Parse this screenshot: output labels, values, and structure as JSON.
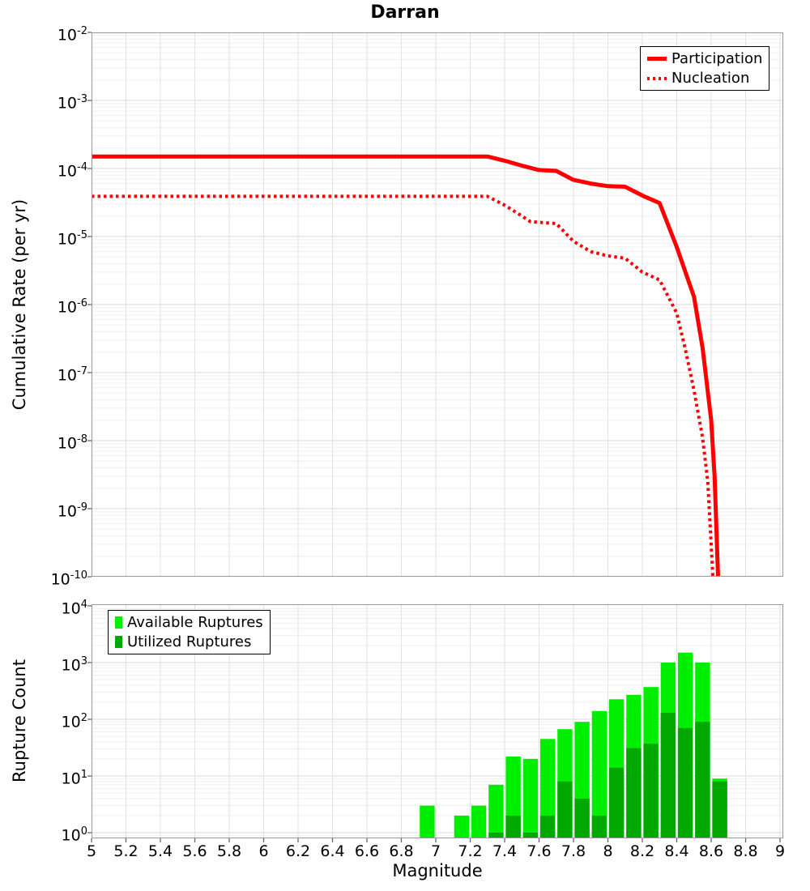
{
  "title": "Darran",
  "colors": {
    "rate_line": "#ff0000",
    "available_green": "#00ef00",
    "utilized_green": "#00a800",
    "grid_major": "#d8d8d8",
    "grid_minor": "#efefef",
    "grid_vertical": "#e2e2e2",
    "frame": "#999999",
    "tick": "#666666"
  },
  "chart_data": [
    {
      "type": "line",
      "title": "Darran",
      "ylabel": "Cumulative Rate (per yr)",
      "y_scale": "log",
      "y_range": [
        1e-10,
        0.01
      ],
      "x_range": [
        5,
        9
      ],
      "grid": true,
      "y_tick_exponents": [
        -2,
        -3,
        -4,
        -5,
        -6,
        -7,
        -8,
        -9,
        -10
      ],
      "legend": {
        "position": "top-right",
        "entries": [
          "Participation",
          "Nucleation"
        ]
      },
      "series": [
        {
          "name": "Participation",
          "line_style": "solid",
          "color": "#ff0000",
          "points": [
            [
              5.0,
              0.00015
            ],
            [
              7.3,
              0.00015
            ],
            [
              7.4,
              0.00013
            ],
            [
              7.5,
              0.00011
            ],
            [
              7.6,
              9.5e-05
            ],
            [
              7.7,
              9.2e-05
            ],
            [
              7.8,
              6.8e-05
            ],
            [
              7.9,
              6e-05
            ],
            [
              8.0,
              5.5e-05
            ],
            [
              8.1,
              5.4e-05
            ],
            [
              8.2,
              4e-05
            ],
            [
              8.3,
              3.1e-05
            ],
            [
              8.4,
              7e-06
            ],
            [
              8.5,
              1.3e-06
            ],
            [
              8.55,
              2.3e-07
            ],
            [
              8.6,
              2e-08
            ],
            [
              8.62,
              3e-09
            ],
            [
              8.64,
              1e-10
            ]
          ]
        },
        {
          "name": "Nucleation",
          "line_style": "dotted",
          "color": "#ff0000",
          "points": [
            [
              5.0,
              3.9e-05
            ],
            [
              7.3,
              3.9e-05
            ],
            [
              7.4,
              2.9e-05
            ],
            [
              7.5,
              2e-05
            ],
            [
              7.55,
              1.65e-05
            ],
            [
              7.7,
              1.55e-05
            ],
            [
              7.8,
              8.5e-06
            ],
            [
              7.9,
              6e-06
            ],
            [
              8.0,
              5.2e-06
            ],
            [
              8.1,
              4.8e-06
            ],
            [
              8.2,
              3e-06
            ],
            [
              8.3,
              2.3e-06
            ],
            [
              8.4,
              7.5e-07
            ],
            [
              8.45,
              2.2e-07
            ],
            [
              8.5,
              5.5e-08
            ],
            [
              8.55,
              1.1e-08
            ],
            [
              8.58,
              2.5e-09
            ],
            [
              8.61,
              1e-10
            ]
          ]
        }
      ]
    },
    {
      "type": "bar",
      "ylabel": "Rupture Count",
      "xlabel": "Magnitude",
      "y_scale": "log",
      "y_range": [
        1,
        10000
      ],
      "x_range": [
        5,
        9
      ],
      "grid": true,
      "y_tick_exponents": [
        4,
        3,
        2,
        1,
        0
      ],
      "x_tick_labels": [
        "5",
        "5.2",
        "5.4",
        "5.6",
        "5.8",
        "6",
        "6.2",
        "6.4",
        "6.6",
        "6.8",
        "7",
        "7.2",
        "7.4",
        "7.6",
        "7.8",
        "8",
        "8.2",
        "8.4",
        "8.6",
        "8.8",
        "9"
      ],
      "categories": [
        6.95,
        7.05,
        7.15,
        7.25,
        7.35,
        7.45,
        7.55,
        7.65,
        7.75,
        7.85,
        7.95,
        8.05,
        8.15,
        8.25,
        8.35,
        8.45,
        8.55,
        8.65
      ],
      "legend": {
        "position": "top-left",
        "entries": [
          "Available Ruptures",
          "Utilized Ruptures"
        ]
      },
      "series": [
        {
          "name": "Available Ruptures",
          "color": "#00ef00",
          "values": [
            3,
            0,
            2,
            3,
            7,
            22,
            20,
            45,
            67,
            90,
            140,
            225,
            270,
            370,
            1000,
            1500,
            1000,
            9
          ]
        },
        {
          "name": "Utilized Ruptures",
          "color": "#00a800",
          "values": [
            0,
            0,
            0,
            0,
            1,
            2,
            1,
            2,
            8,
            4,
            2,
            14,
            31,
            37,
            130,
            70,
            90,
            8
          ]
        }
      ]
    }
  ]
}
